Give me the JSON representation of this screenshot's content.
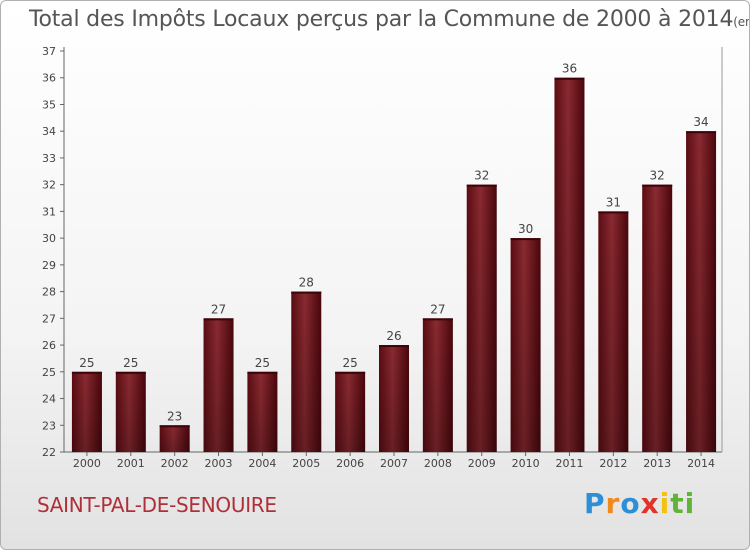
{
  "header": {
    "title": "Total des Impôts Locaux perçus par la Commune de 2000 à 2014",
    "unit": "(en milliers d'€)"
  },
  "footer": {
    "commune": "SAINT-PAL-DE-SENOUIRE",
    "logo_letters": [
      "P",
      "r",
      "o",
      "x",
      "i",
      "t",
      "i"
    ],
    "logo_colors": [
      "#2f8fd6",
      "#f08a1c",
      "#2f8fd6",
      "#e0342b",
      "#f4c20d",
      "#5fb336",
      "#5fb336"
    ]
  },
  "chart_data": {
    "type": "bar",
    "categories": [
      "2000",
      "2001",
      "2002",
      "2003",
      "2004",
      "2005",
      "2006",
      "2007",
      "2008",
      "2009",
      "2010",
      "2011",
      "2012",
      "2013",
      "2014"
    ],
    "values": [
      25,
      25,
      23,
      27,
      25,
      28,
      25,
      26,
      27,
      32,
      30,
      36,
      31,
      32,
      34
    ],
    "ylim": [
      22,
      37
    ],
    "yticks": [
      22,
      23,
      24,
      25,
      26,
      27,
      28,
      29,
      30,
      31,
      32,
      33,
      34,
      35,
      36,
      37
    ],
    "grid": false,
    "bar_color": "#7a1a22",
    "legend": "none"
  }
}
